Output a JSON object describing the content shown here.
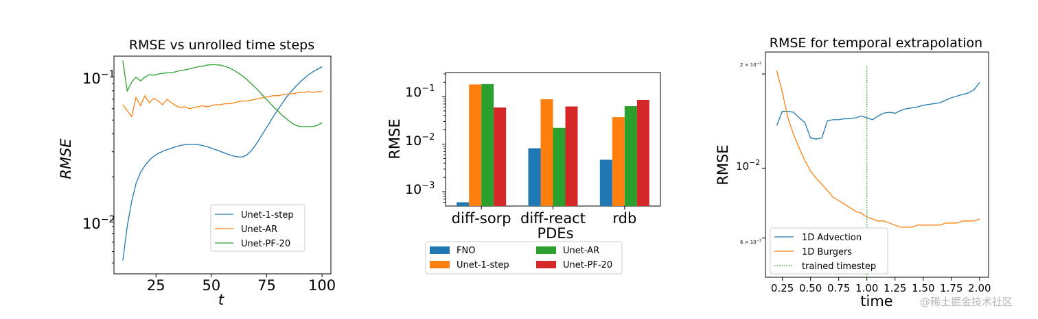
{
  "colors": {
    "blue": "#1f77b4",
    "orange": "#ff7f0e",
    "green": "#2ca02c",
    "red": "#d62728"
  },
  "watermark": "@稀土掘金技术社区",
  "chart_data": [
    {
      "type": "line",
      "title": "RMSE vs unrolled time steps",
      "xlabel": "t",
      "ylabel": "RMSE",
      "yscale": "log",
      "xlim": [
        6,
        104
      ],
      "ylim": [
        0.0042,
        0.14
      ],
      "xticks": [
        "25",
        "50",
        "75",
        "100"
      ],
      "xtick_values": [
        25,
        50,
        75,
        100
      ],
      "yticks": [
        "10−2",
        "10−1"
      ],
      "ytick_values": [
        0.01,
        0.1
      ],
      "legend_position": "lower right",
      "x": [
        10,
        12,
        14,
        16,
        18,
        20,
        22,
        24,
        26,
        28,
        30,
        32,
        34,
        36,
        38,
        40,
        42,
        44,
        46,
        48,
        50,
        52,
        54,
        56,
        58,
        60,
        62,
        64,
        66,
        68,
        70,
        72,
        74,
        76,
        78,
        80,
        82,
        84,
        86,
        88,
        90,
        92,
        94,
        96,
        98,
        100
      ],
      "series": [
        {
          "name": "Unet-1-step",
          "values": [
            0.0052,
            0.009,
            0.0135,
            0.018,
            0.0215,
            0.024,
            0.0262,
            0.0279,
            0.0292,
            0.0302,
            0.031,
            0.0318,
            0.0326,
            0.0332,
            0.0336,
            0.0338,
            0.0338,
            0.0336,
            0.0332,
            0.0326,
            0.0318,
            0.031,
            0.0302,
            0.0294,
            0.0286,
            0.028,
            0.0276,
            0.0276,
            0.0285,
            0.0305,
            0.0335,
            0.0375,
            0.042,
            0.047,
            0.053,
            0.059,
            0.0655,
            0.0725,
            0.079,
            0.0855,
            0.092,
            0.098,
            0.104,
            0.109,
            0.1135,
            0.118
          ]
        },
        {
          "name": "Unet-AR",
          "values": [
            0.064,
            0.058,
            0.053,
            0.072,
            0.063,
            0.074,
            0.066,
            0.071,
            0.068,
            0.064,
            0.07,
            0.066,
            0.063,
            0.061,
            0.062,
            0.06,
            0.061,
            0.062,
            0.063,
            0.062,
            0.063,
            0.064,
            0.064,
            0.065,
            0.065,
            0.066,
            0.067,
            0.068,
            0.068,
            0.069,
            0.07,
            0.071,
            0.072,
            0.073,
            0.074,
            0.074,
            0.075,
            0.076,
            0.076,
            0.077,
            0.078,
            0.078,
            0.079,
            0.078,
            0.079,
            0.079
          ]
        },
        {
          "name": "Unet-PF-20",
          "values": [
            0.13,
            0.08,
            0.092,
            0.1,
            0.094,
            0.1,
            0.104,
            0.103,
            0.105,
            0.106,
            0.107,
            0.107,
            0.109,
            0.111,
            0.112,
            0.114,
            0.116,
            0.118,
            0.119,
            0.121,
            0.122,
            0.122,
            0.121,
            0.119,
            0.116,
            0.112,
            0.107,
            0.102,
            0.096,
            0.09,
            0.084,
            0.078,
            0.072,
            0.067,
            0.062,
            0.058,
            0.054,
            0.051,
            0.048,
            0.046,
            0.045,
            0.045,
            0.045,
            0.045,
            0.046,
            0.048
          ]
        }
      ]
    },
    {
      "type": "bar",
      "title": "",
      "xlabel": "PDEs",
      "ylabel": "RMSE",
      "yscale": "log",
      "ylim": [
        0.0005,
        0.32
      ],
      "yticks": [
        "10−3",
        "10−2",
        "10−1"
      ],
      "ytick_values": [
        0.001,
        0.01,
        0.1
      ],
      "categories": [
        "diff-sorp",
        "diff-react",
        "rdb"
      ],
      "legend_position": "below",
      "series": [
        {
          "name": "FNO",
          "values": [
            0.0006,
            0.0082,
            0.0047
          ]
        },
        {
          "name": "Unet-1-step",
          "values": [
            0.18,
            0.088,
            0.037
          ]
        },
        {
          "name": "Unet-AR",
          "values": [
            0.183,
            0.022,
            0.063
          ]
        },
        {
          "name": "Unet-PF-20",
          "values": [
            0.059,
            0.062,
            0.085
          ]
        }
      ]
    },
    {
      "type": "line",
      "title": "RMSE for temporal extrapolation",
      "xlabel": "time",
      "ylabel": "RMSE",
      "yscale": "log",
      "xlim": [
        0.1,
        2.08
      ],
      "ylim": [
        0.0045,
        0.0235
      ],
      "xticks": [
        "0.25",
        "0.50",
        "0.75",
        "1.00",
        "1.25",
        "1.50",
        "1.75",
        "2.00"
      ],
      "xtick_values": [
        0.25,
        0.5,
        0.75,
        1.0,
        1.25,
        1.5,
        1.75,
        2.0
      ],
      "yticks": [
        "6 × 10−3",
        "10−2",
        "2 × 10−2"
      ],
      "ytick_values": [
        0.006,
        0.01,
        0.02
      ],
      "legend_position": "lower left",
      "x": [
        0.2,
        0.25,
        0.3,
        0.35,
        0.4,
        0.45,
        0.5,
        0.55,
        0.6,
        0.65,
        0.7,
        0.75,
        0.8,
        0.85,
        0.9,
        0.95,
        1.0,
        1.05,
        1.1,
        1.15,
        1.2,
        1.25,
        1.3,
        1.35,
        1.4,
        1.45,
        1.5,
        1.55,
        1.6,
        1.65,
        1.7,
        1.75,
        1.8,
        1.85,
        1.9,
        1.95,
        2.0
      ],
      "series": [
        {
          "name": "1D Advection",
          "values": [
            0.0137,
            0.0152,
            0.0152,
            0.0151,
            0.0145,
            0.014,
            0.0125,
            0.0124,
            0.0125,
            0.0142,
            0.0143,
            0.0143,
            0.0144,
            0.0144,
            0.0145,
            0.0147,
            0.0145,
            0.0143,
            0.0147,
            0.015,
            0.0151,
            0.015,
            0.0153,
            0.0155,
            0.0156,
            0.0157,
            0.0159,
            0.016,
            0.0161,
            0.0162,
            0.0165,
            0.0168,
            0.017,
            0.0172,
            0.0174,
            0.0178,
            0.0188
          ]
        },
        {
          "name": "1D Burgers",
          "values": [
            0.0205,
            0.0175,
            0.0145,
            0.0128,
            0.0116,
            0.0106,
            0.0098,
            0.0093,
            0.0089,
            0.0085,
            0.0081,
            0.0079,
            0.0077,
            0.0075,
            0.0073,
            0.0072,
            0.007,
            0.0069,
            0.0068,
            0.0068,
            0.0067,
            0.0066,
            0.0065,
            0.0065,
            0.0065,
            0.0066,
            0.0066,
            0.0066,
            0.0066,
            0.0066,
            0.0067,
            0.0067,
            0.0067,
            0.0068,
            0.0068,
            0.0068,
            0.0069
          ]
        }
      ],
      "vline": {
        "name": "trained timestep",
        "x": 1.0
      }
    }
  ]
}
